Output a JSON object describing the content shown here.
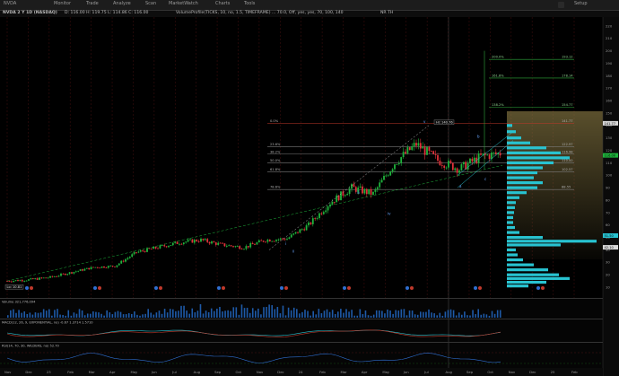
{
  "app": {
    "window_title": "NVDA",
    "top_tabs": [
      "Monitor",
      "Trade",
      "Analyze",
      "Scan",
      "MarketWatch",
      "Charts",
      "Tools"
    ],
    "settings": "Setup"
  },
  "chart_header": {
    "symbol": "NVDA 2 Y 1D (NASDAQ)",
    "ohlc": "D: 116.00   H: 119.75   L: 114.86   C: 116.00",
    "study": "VolumeProfile(TICKS, 10, no, 1.5, TIMEFRAME) ... 70.0, Off, yes, yes, 70, 100, 140",
    "label": "NR TH"
  },
  "colors": {
    "background": "#000000",
    "bull_candle": "#1fb33c",
    "bear_candle": "#e0323a",
    "profile": "#28c3d1",
    "fib_green": "#2ea83b",
    "fib_red": "#c0392b",
    "gradient": "#8a7a44"
  },
  "price_axis": {
    "ticks": [
      "220",
      "210",
      "200",
      "190",
      "180",
      "170",
      "160",
      "150",
      "140",
      "130",
      "120",
      "110",
      "100",
      "90",
      "80",
      "70",
      "60",
      "50",
      "40",
      "30",
      "20",
      "10"
    ],
    "last_price": "116.00",
    "tag_1": "141.77",
    "tag_2": "51.50",
    "tag_3": "42.10"
  },
  "time_axis": {
    "labels": [
      "Nov",
      "Dec",
      "23",
      "Feb",
      "Mar",
      "Apr",
      "May",
      "Jun",
      "Jul",
      "Aug",
      "Sep",
      "Oct",
      "Nov",
      "Dec",
      "24",
      "Feb",
      "Mar",
      "Apr",
      "May",
      "Jun",
      "Jul",
      "Aug",
      "Sep",
      "Oct",
      "Nov",
      "Dec",
      "25",
      "Feb"
    ]
  },
  "annotations": {
    "high_label": "Hi: 140.76",
    "low_label": "Lo: 10.81",
    "fib_left": [
      "0.0%",
      "23.6%",
      "38.2%",
      "50.0%",
      "61.8%",
      "78.6%"
    ],
    "fib_right_levels": [
      "141.77",
      "122.97",
      "116.98",
      "110.00",
      "102.57",
      "88.55"
    ],
    "ext_levels": [
      "200.0%",
      "161.8%",
      "138.2%"
    ],
    "ext_values": [
      "193.12",
      "178.14",
      "154.77"
    ],
    "wave_labels": [
      "i",
      "ii",
      "iii",
      "iv",
      "v",
      "a",
      "b",
      "c"
    ]
  },
  "lower_panels": {
    "volume_label": "Volume   321,776,094",
    "macd_label": "MACD(12, 26, 9, EXPONENTIAL, no)   -0.67   1.3714   1.5710",
    "rsi_label": "RSI(14, 70, 30, WILDERS, no)   52.70"
  },
  "chart_data": {
    "type": "line",
    "x": [
      "Nov 2022",
      "Dec 2022",
      "Jan 2023",
      "Feb 2023",
      "Mar 2023",
      "Apr 2023",
      "May 2023",
      "Jun 2023",
      "Jul 2023",
      "Aug 2023",
      "Sep 2023",
      "Oct 2023",
      "Nov 2023",
      "Dec 2023",
      "Jan 2024",
      "Feb 2024",
      "Mar 2024",
      "Apr 2024",
      "May 2024",
      "Jun 2024",
      "Jul 2024",
      "Aug 2024",
      "Sep 2024",
      "Oct 2024"
    ],
    "series": [
      {
        "values": [
          15,
          16,
          18,
          22,
          26,
          27,
          38,
          42,
          46,
          48,
          44,
          42,
          48,
          49,
          60,
          78,
          90,
          85,
          110,
          125,
          112,
          105,
          115,
          118
        ]
      }
    ],
    "ylim": [
      10,
      225
    ]
  }
}
